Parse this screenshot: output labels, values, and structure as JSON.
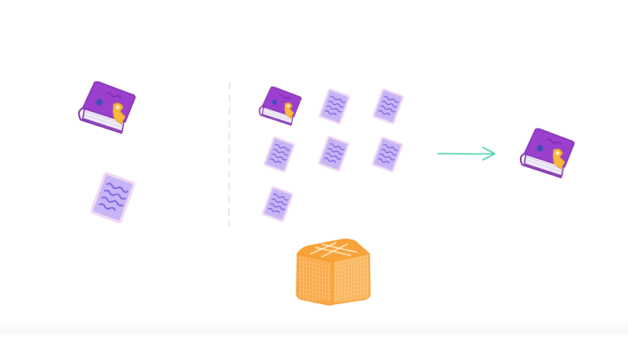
{
  "diagram": {
    "colors": {
      "book_cover": "#9b3fcf",
      "book_cover_dark": "#7b2aa8",
      "book_pages": "#f2eefa",
      "book_clip": "#f6b93b",
      "book_dot": "#3b4fb8",
      "page_fill": "#c7b6f5",
      "page_edge": "#f3d9f3",
      "page_lines": "#7a5ce0",
      "divider": "#e6e6ea",
      "arrow": "#3ecfa6",
      "box_fill": "#f9a946",
      "box_lines": "#fbe2bf",
      "box_outline": "#f39a2c"
    },
    "left_panel": {
      "items": [
        {
          "kind": "book",
          "icon": "book-icon"
        },
        {
          "kind": "page",
          "icon": "page-icon"
        }
      ]
    },
    "grid_panel": {
      "rows": [
        [
          "book",
          "page",
          "page"
        ],
        [
          "page",
          "page",
          "page"
        ],
        [
          "page"
        ]
      ]
    },
    "result": {
      "kind": "book",
      "icon": "book-icon"
    },
    "arrow": {
      "icon": "arrow-right-icon"
    },
    "box": {
      "icon": "waffle-box-icon"
    }
  }
}
